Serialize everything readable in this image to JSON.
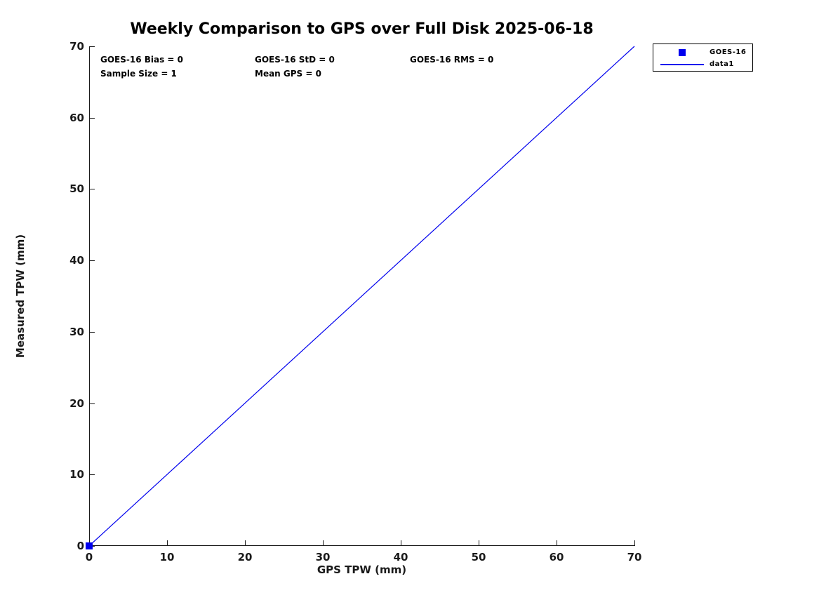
{
  "chart_data": {
    "type": "scatter",
    "title": "Weekly Comparison to GPS over Full Disk 2025-06-18",
    "xlabel": "GPS TPW (mm)",
    "ylabel": "Measured TPW (mm)",
    "xlim": [
      0,
      70
    ],
    "ylim": [
      0,
      70
    ],
    "x_ticks": [
      0,
      10,
      20,
      30,
      40,
      50,
      60,
      70
    ],
    "y_ticks": [
      0,
      10,
      20,
      30,
      40,
      50,
      60,
      70
    ],
    "grid": false,
    "colors": {
      "series": "#0000EE",
      "axis": "#1a1a1a",
      "text": "#000000"
    },
    "series": [
      {
        "name": "GOES-16",
        "type": "scatter",
        "marker": "square",
        "color": "#0000EE",
        "points": [
          [
            0,
            0
          ]
        ]
      },
      {
        "name": "data1",
        "type": "line",
        "color": "#0000EE",
        "points": [
          [
            0,
            0
          ],
          [
            70,
            70
          ]
        ]
      }
    ],
    "annotations": [
      "GOES-16 Bias = 0",
      "GOES-16 StD = 0",
      "GOES-16 RMS = 0",
      "Sample Size = 1",
      "Mean GPS = 0"
    ],
    "legend": {
      "position": "outside-top-right",
      "entries": [
        {
          "label": "GOES-16",
          "glyph": "square-marker"
        },
        {
          "label": "data1",
          "glyph": "line"
        }
      ]
    }
  }
}
